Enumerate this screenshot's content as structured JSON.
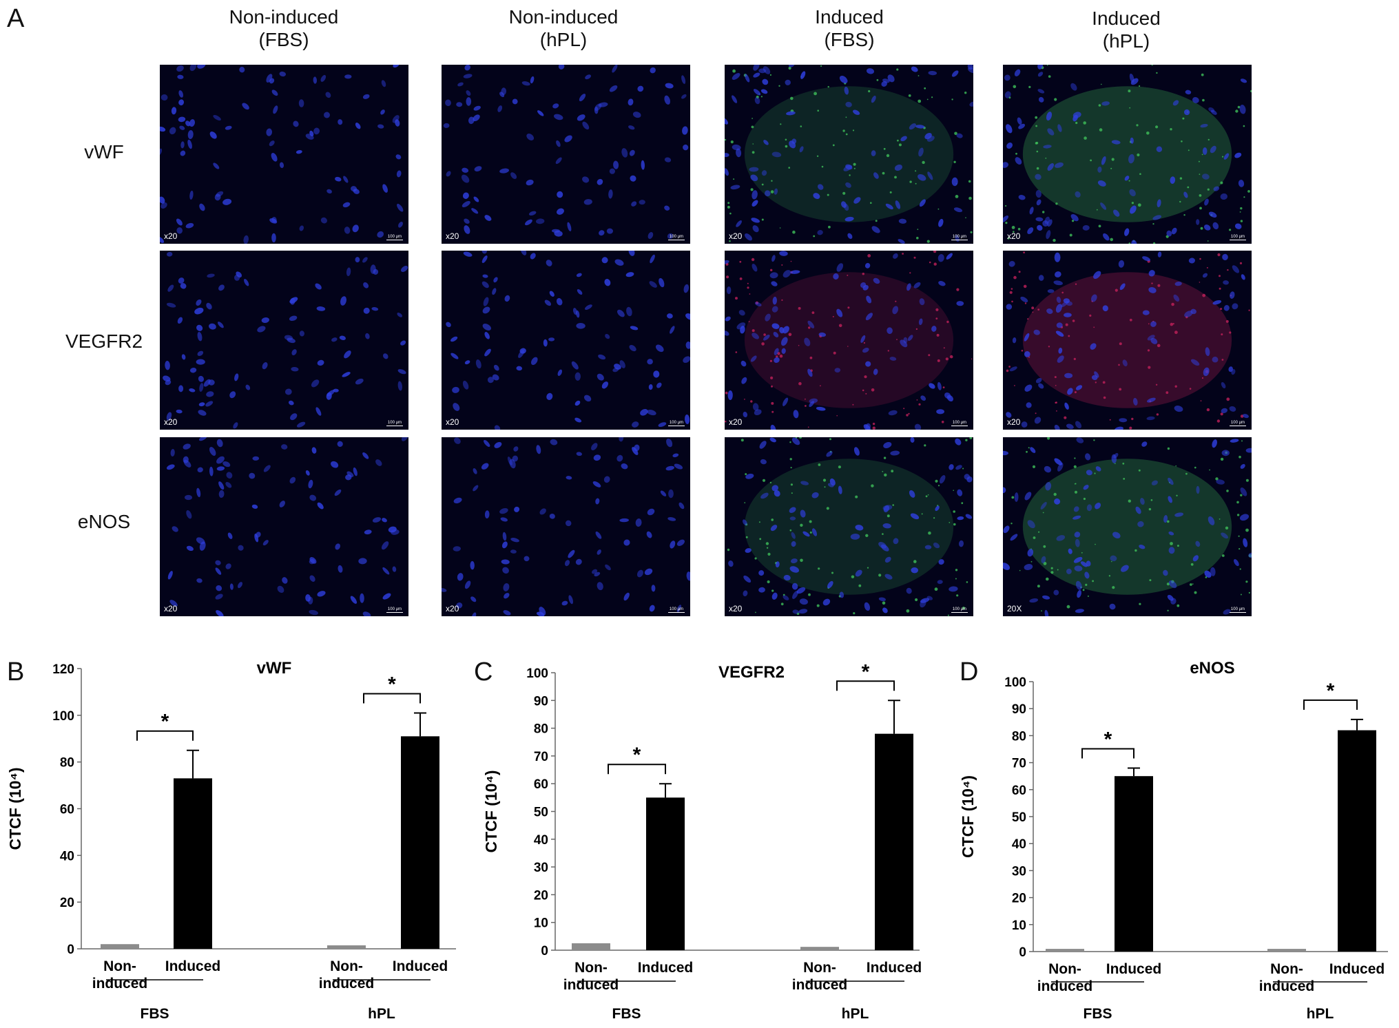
{
  "panels": {
    "A": "A",
    "B": "B",
    "C": "C",
    "D": "D"
  },
  "columns": [
    {
      "line1": "Non-induced",
      "line2": "(FBS)"
    },
    {
      "line1": "Non-induced",
      "line2": "(hPL)"
    },
    {
      "line1": "Induced",
      "line2": "(FBS)"
    },
    {
      "line1": "Induced",
      "line2": "(hPL)"
    }
  ],
  "rows": [
    {
      "label": "vWF",
      "images": [
        {
          "mag": "x20",
          "scale": "100 μm",
          "stain": "none"
        },
        {
          "mag": "x20",
          "scale": "100 μm",
          "stain": "none"
        },
        {
          "mag": "x20",
          "scale": "100 μm",
          "stain": "green"
        },
        {
          "mag": "x20",
          "scale": "100 μm",
          "stain": "green"
        }
      ]
    },
    {
      "label": "VEGFR2",
      "images": [
        {
          "mag": "x20",
          "scale": "100 μm",
          "stain": "none"
        },
        {
          "mag": "x20",
          "scale": "100 μm",
          "stain": "none"
        },
        {
          "mag": "x20",
          "scale": "100 μm",
          "stain": "red"
        },
        {
          "mag": "x20",
          "scale": "100 μm",
          "stain": "red"
        }
      ]
    },
    {
      "label": "eNOS",
      "images": [
        {
          "mag": "x20",
          "scale": "100 μm",
          "stain": "none"
        },
        {
          "mag": "x20",
          "scale": "100 μm",
          "stain": "none"
        },
        {
          "mag": "x20",
          "scale": "100 μm",
          "stain": "green"
        },
        {
          "mag": "20X",
          "scale": "100 μm",
          "stain": "green"
        }
      ]
    }
  ],
  "colors": {
    "nuclei": "#2f3fe0",
    "green_stain": "#3fbf5a",
    "red_stain": "#c0205a",
    "bar_noninduced": "#8c8c8c",
    "bar_induced": "#000000"
  },
  "chart_data": [
    {
      "type": "bar",
      "title": "vWF",
      "ylabel": "CTCF (10⁴)",
      "ylim": [
        0,
        120
      ],
      "yticks": [
        0,
        20,
        40,
        60,
        80,
        100,
        120
      ],
      "groups": [
        {
          "name": "FBS",
          "bars": [
            {
              "label": "Non-\ninduced",
              "value": 2,
              "error": 0,
              "kind": "noninduced"
            },
            {
              "label": "Induced",
              "value": 73,
              "error": 12,
              "kind": "induced"
            }
          ],
          "significance": "*"
        },
        {
          "name": "hPL",
          "bars": [
            {
              "label": "Non-\ninduced",
              "value": 1.5,
              "error": 0,
              "kind": "noninduced"
            },
            {
              "label": "Induced",
              "value": 91,
              "error": 10,
              "kind": "induced"
            }
          ],
          "significance": "*"
        }
      ]
    },
    {
      "type": "bar",
      "title": "VEGFR2",
      "ylabel": "CTCF (10⁴)",
      "ylim": [
        0,
        100
      ],
      "yticks": [
        0,
        10,
        20,
        30,
        40,
        50,
        60,
        70,
        80,
        90,
        100
      ],
      "groups": [
        {
          "name": "FBS",
          "bars": [
            {
              "label": "Non-\ninduced",
              "value": 2.5,
              "error": 0,
              "kind": "noninduced"
            },
            {
              "label": "Induced",
              "value": 55,
              "error": 5,
              "kind": "induced"
            }
          ],
          "significance": "*"
        },
        {
          "name": "hPL",
          "bars": [
            {
              "label": "Non-\ninduced",
              "value": 1.2,
              "error": 0,
              "kind": "noninduced"
            },
            {
              "label": "Induced",
              "value": 78,
              "error": 12,
              "kind": "induced"
            }
          ],
          "significance": "*"
        }
      ]
    },
    {
      "type": "bar",
      "title": "eNOS",
      "ylabel": "CTCF (10⁴)",
      "ylim": [
        0,
        100
      ],
      "yticks": [
        0,
        10,
        20,
        30,
        40,
        50,
        60,
        70,
        80,
        90,
        100
      ],
      "groups": [
        {
          "name": "FBS",
          "bars": [
            {
              "label": "Non-\ninduced",
              "value": 1,
              "error": 0,
              "kind": "noninduced"
            },
            {
              "label": "Induced",
              "value": 65,
              "error": 3,
              "kind": "induced"
            }
          ],
          "significance": "*"
        },
        {
          "name": "hPL",
          "bars": [
            {
              "label": "Non-\ninduced",
              "value": 1,
              "error": 0,
              "kind": "noninduced"
            },
            {
              "label": "Induced",
              "value": 82,
              "error": 4,
              "kind": "induced"
            }
          ],
          "significance": "*"
        }
      ]
    }
  ]
}
